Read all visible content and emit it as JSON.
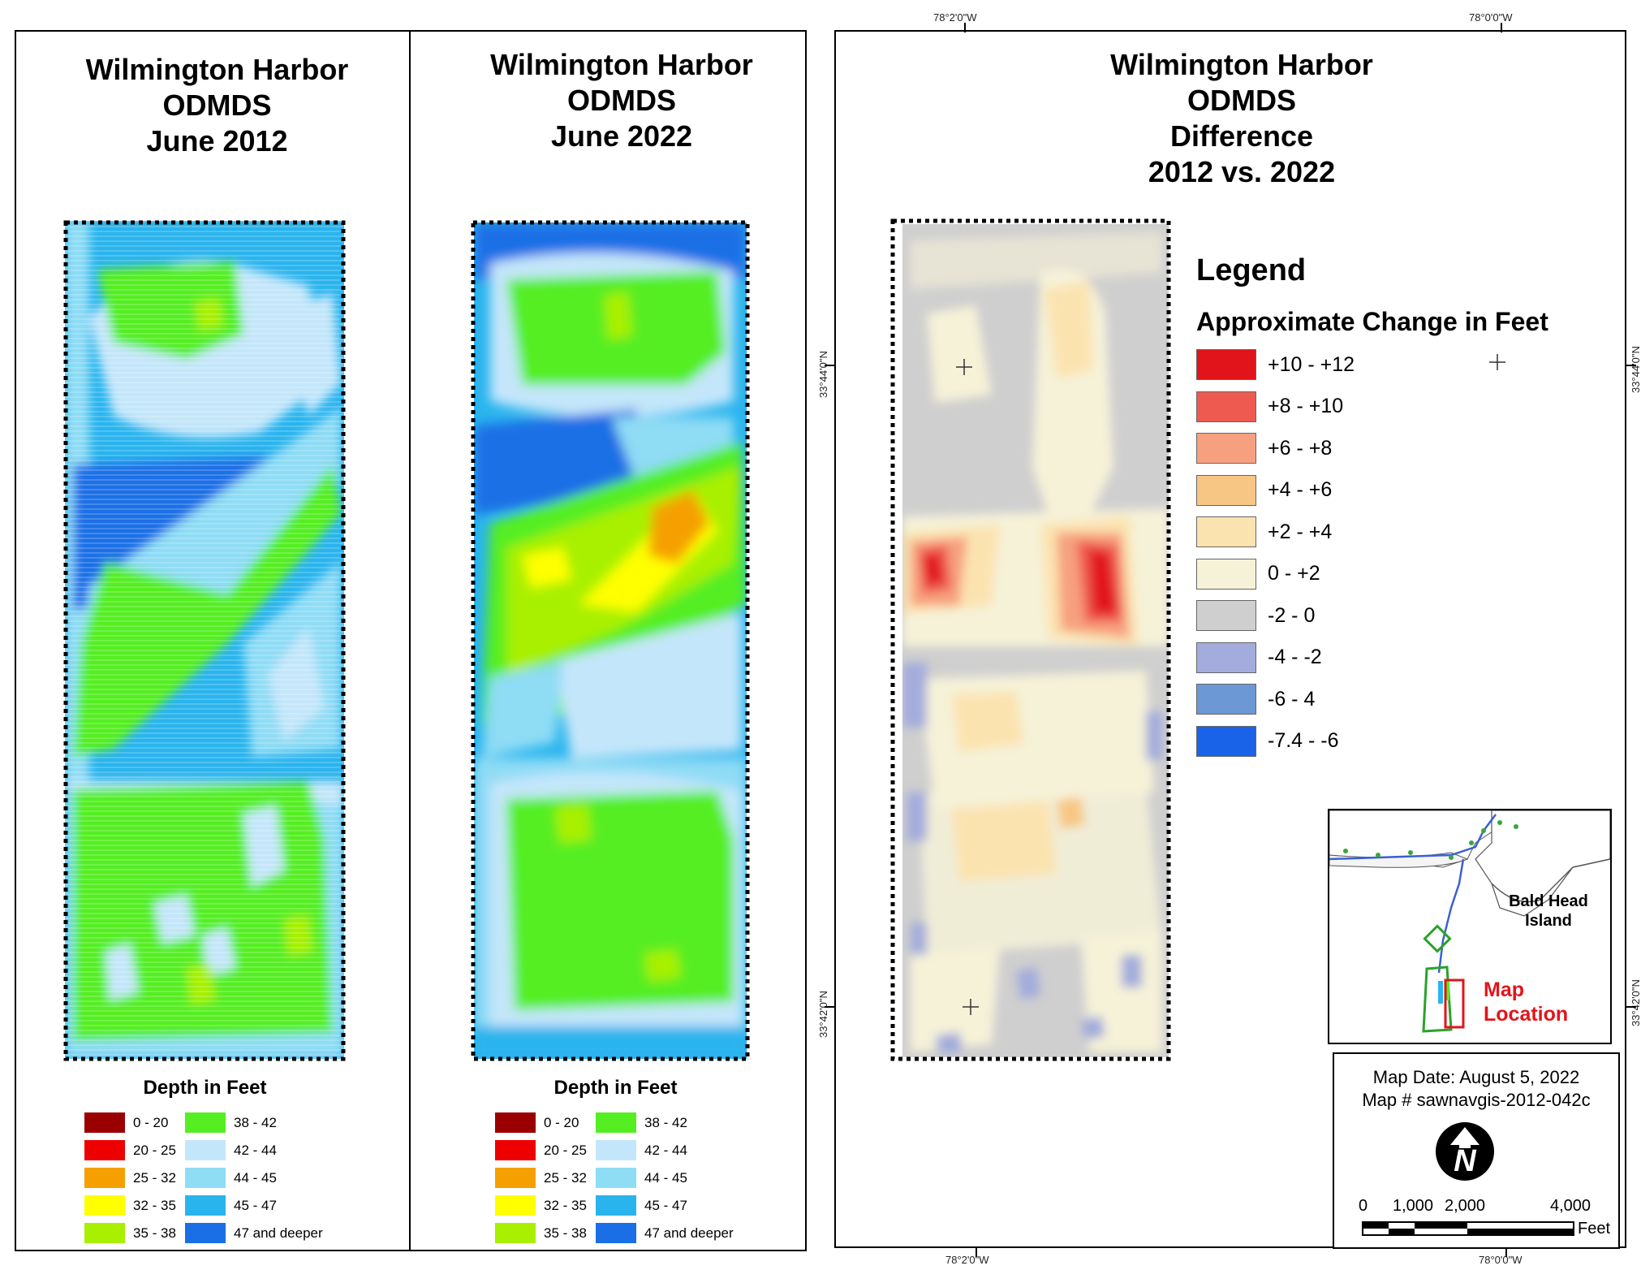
{
  "panels": [
    {
      "id": "june-2012",
      "title_lines": [
        "Wilmington Harbor",
        "ODMDS",
        "June 2012"
      ],
      "legend_title": "Depth in Feet"
    },
    {
      "id": "june-2022",
      "title_lines": [
        "Wilmington Harbor",
        "ODMDS",
        "June 2022"
      ],
      "legend_title": "Depth in Feet"
    }
  ],
  "depth_legend": [
    {
      "label": "0 - 20",
      "color": "#9b0000"
    },
    {
      "label": "20 - 25",
      "color": "#ee0000"
    },
    {
      "label": "25 - 32",
      "color": "#f5a000"
    },
    {
      "label": "32 - 35",
      "color": "#ffff00"
    },
    {
      "label": "35 - 38",
      "color": "#a8f000"
    },
    {
      "label": "38 - 42",
      "color": "#55ee22"
    },
    {
      "label": "42 - 44",
      "color": "#c4e6fa"
    },
    {
      "label": "44 - 45",
      "color": "#8fdcf5"
    },
    {
      "label": "45 - 47",
      "color": "#2ab4ee"
    },
    {
      "label": "47 and deeper",
      "color": "#1a6fe6"
    }
  ],
  "difference_panel": {
    "title_lines": [
      "Wilmington Harbor",
      "ODMDS",
      "Difference",
      "2012 vs. 2022"
    ],
    "legend_heading": "Legend",
    "legend_subheading": "Approximate Change in Feet",
    "legend": [
      {
        "label": "+10 - +12",
        "color": "#e2141b"
      },
      {
        "label": "+8 - +10",
        "color": "#ef5a50"
      },
      {
        "label": "+6 - +8",
        "color": "#f7a07f"
      },
      {
        "label": "+4 - +6",
        "color": "#f8c684"
      },
      {
        "label": "+2 - +4",
        "color": "#fbe3b0"
      },
      {
        "label": "0 - +2",
        "color": "#f6f2d8"
      },
      {
        "label": "-2 - 0",
        "color": "#cfcfcf"
      },
      {
        "label": "-4 - -2",
        "color": "#a3acdc"
      },
      {
        "label": "-6 - 4",
        "color": "#6c98d5"
      },
      {
        "label": "-7.4 - -6",
        "color": "#1963e8"
      }
    ],
    "coords": {
      "top_left": "78°2'0\"W",
      "top_right": "78°0'0\"W",
      "bottom_left": "78°2'0\"W",
      "bottom_right": "78°0'0\"W",
      "left_upper": "33°44'0\"N",
      "left_lower": "33°42'0\"N",
      "right_upper": "33°44'0\"N",
      "right_lower": "33°42'0\"N"
    },
    "inset": {
      "island_label_1": "Bald Head",
      "island_label_2": "Island",
      "location_label_1": "Map",
      "location_label_2": "Location"
    },
    "info": {
      "map_date": "Map Date: August 5, 2022",
      "map_number": "Map # sawnavgis-2012-042c",
      "north_letter": "N",
      "scale_labels": [
        "0",
        "1,000",
        "2,000",
        "4,000"
      ],
      "scale_unit": "Feet"
    }
  }
}
